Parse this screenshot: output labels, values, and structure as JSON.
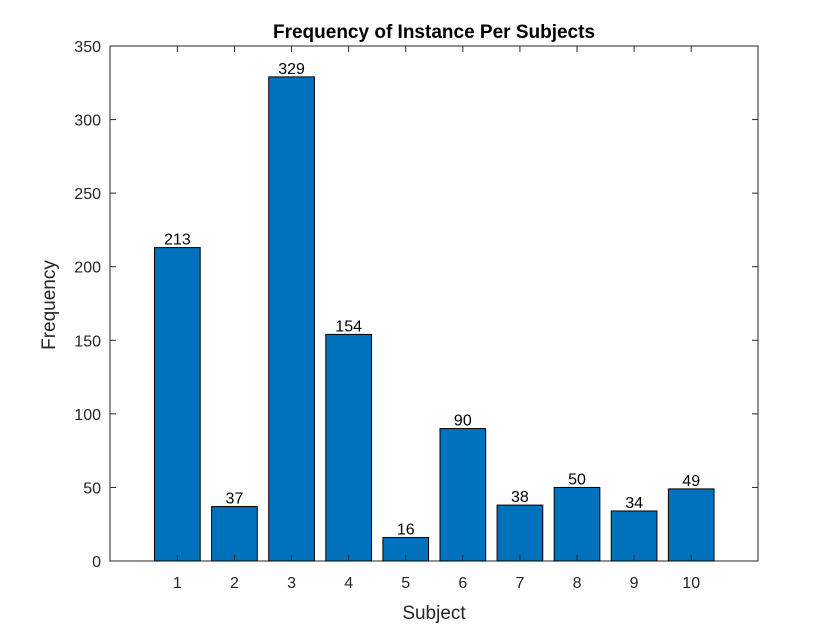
{
  "chart_data": {
    "type": "bar",
    "title": "Frequency of Instance Per Subjects",
    "xlabel": "Subject",
    "ylabel": "Frequency",
    "categories": [
      "1",
      "2",
      "3",
      "4",
      "5",
      "6",
      "7",
      "8",
      "9",
      "10"
    ],
    "values": [
      213,
      37,
      329,
      154,
      16,
      90,
      38,
      50,
      34,
      49
    ],
    "data_labels": [
      "213",
      "37",
      "329",
      "154",
      "16",
      "90",
      "38",
      "50",
      "34",
      "49"
    ],
    "ylim": [
      0,
      350
    ],
    "yticks": [
      0,
      50,
      100,
      150,
      200,
      250,
      300,
      350
    ],
    "ytick_labels": [
      "0",
      "50",
      "100",
      "150",
      "200",
      "250",
      "300",
      "350"
    ],
    "grid": false,
    "bar_color": "#0072BD",
    "bar_edge_color": "#000000",
    "axis_color": "#262626"
  }
}
